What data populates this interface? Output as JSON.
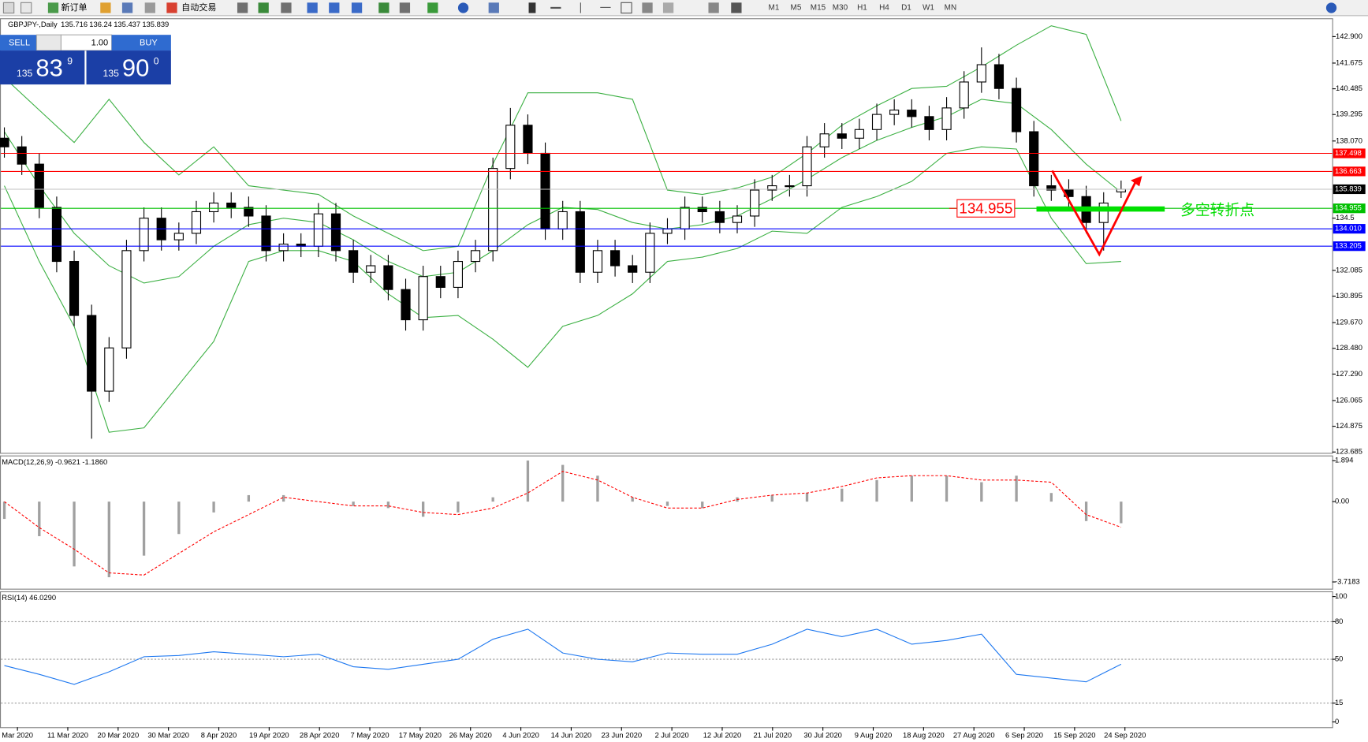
{
  "toolbar": {
    "new_order": "新订单",
    "auto_trading": "自动交易",
    "timeframes": [
      "M1",
      "M5",
      "M15",
      "M30",
      "H1",
      "H4",
      "D1",
      "W1",
      "MN"
    ]
  },
  "trade_panel": {
    "sell": "SELL",
    "buy": "BUY",
    "lots": "1.00",
    "bid": [
      "135",
      "83",
      "9"
    ],
    "ask": [
      "135",
      "90",
      "0"
    ]
  },
  "chart_data": {
    "type": "candlestick",
    "title": "GBPJPY-,Daily",
    "open": [
      138.2,
      137.8,
      137.0,
      135.0,
      132.5,
      130.0,
      126.5,
      128.5,
      133.0,
      134.5,
      133.5,
      133.8,
      134.8,
      135.2,
      135.0,
      134.6,
      133.0,
      133.3,
      133.2,
      134.7,
      133.0,
      132.0,
      132.3,
      131.2,
      129.8,
      131.8,
      131.3,
      132.5,
      133.0,
      136.8,
      138.8,
      137.5,
      134.0,
      134.8,
      132.0,
      133.0,
      132.3,
      132.0,
      133.8,
      134.0,
      135.0,
      134.8,
      134.3,
      134.6,
      135.8,
      136.0,
      136.0,
      137.8,
      138.4,
      138.2,
      138.6,
      139.3,
      139.5,
      139.2,
      138.6,
      139.6,
      140.8,
      141.6,
      140.5,
      138.5,
      136.0,
      135.8,
      135.5,
      134.3,
      135.716
    ],
    "high": [
      138.7,
      138.3,
      137.5,
      135.5,
      133.0,
      130.5,
      129.0,
      133.5,
      135.0,
      135.0,
      134.3,
      135.3,
      135.7,
      135.7,
      135.5,
      135.1,
      133.8,
      133.8,
      135.2,
      135.2,
      133.5,
      132.8,
      132.8,
      131.7,
      132.3,
      132.3,
      133.0,
      133.5,
      137.3,
      139.6,
      139.3,
      138.0,
      135.3,
      135.3,
      133.5,
      133.5,
      132.8,
      134.3,
      134.5,
      135.5,
      135.5,
      135.3,
      135.1,
      136.3,
      136.5,
      136.5,
      138.3,
      138.9,
      138.9,
      139.1,
      139.8,
      140.0,
      140.0,
      139.7,
      140.1,
      141.3,
      142.4,
      142.1,
      141.0,
      139.0,
      136.5,
      136.3,
      136.0,
      135.7,
      136.24
    ],
    "low": [
      137.3,
      136.5,
      134.5,
      132.0,
      129.5,
      124.3,
      126.0,
      128.0,
      132.5,
      133.0,
      133.0,
      133.3,
      134.3,
      134.5,
      134.1,
      132.5,
      132.5,
      132.7,
      132.7,
      132.5,
      131.5,
      131.5,
      130.7,
      129.3,
      129.3,
      130.8,
      130.8,
      132.0,
      132.5,
      136.3,
      137.0,
      133.5,
      133.5,
      131.5,
      131.5,
      131.8,
      131.5,
      131.5,
      133.3,
      133.5,
      134.3,
      133.8,
      133.8,
      134.1,
      135.3,
      135.5,
      135.5,
      137.3,
      137.7,
      137.7,
      138.1,
      138.8,
      138.7,
      138.1,
      138.1,
      139.1,
      140.3,
      140.0,
      138.0,
      135.5,
      135.3,
      135.0,
      133.8,
      133.0,
      135.437
    ],
    "close": [
      137.8,
      137.0,
      135.0,
      132.5,
      130.0,
      126.5,
      128.5,
      133.0,
      134.5,
      133.5,
      133.8,
      134.8,
      135.2,
      135.0,
      134.6,
      133.0,
      133.3,
      133.2,
      134.7,
      133.0,
      132.0,
      132.3,
      131.2,
      129.8,
      131.8,
      131.3,
      132.5,
      133.0,
      136.8,
      138.8,
      137.5,
      134.0,
      134.8,
      132.0,
      133.0,
      132.3,
      132.0,
      133.8,
      134.0,
      135.0,
      134.8,
      134.3,
      134.6,
      135.8,
      136.0,
      136.0,
      137.8,
      138.4,
      138.2,
      138.6,
      139.3,
      139.5,
      139.2,
      138.6,
      139.6,
      140.8,
      141.6,
      140.5,
      138.5,
      136.0,
      135.8,
      135.5,
      134.3,
      135.2,
      135.839
    ],
    "up_color": "#ffffff",
    "down_color": "#000000",
    "ylim": [
      123.645,
      143.706
    ],
    "yticks": [
      {
        "value": 142.9,
        "label": "142.900"
      },
      141.675,
      140.485,
      139.295,
      {
        "value": 138.07,
        "label": "138.070"
      },
      134.5,
      132.085,
      130.895,
      {
        "value": 129.67,
        "label": "129.670"
      },
      {
        "value": 128.48,
        "label": "128.480"
      },
      {
        "value": 127.29,
        "label": "127.290"
      },
      126.065,
      124.875,
      123.685
    ],
    "bollinger": {
      "color": "#3cb043",
      "upper": [
        141.0,
        139.5,
        138.0,
        140.0,
        138.0,
        136.5,
        137.8,
        136.0,
        135.8,
        135.6,
        134.6,
        133.8,
        133.0,
        133.2,
        137.0,
        140.3,
        140.3,
        140.3,
        140.0,
        135.8,
        135.6,
        135.9,
        136.4,
        137.5,
        138.8,
        139.7,
        140.5,
        140.6,
        141.5,
        142.5,
        143.4,
        143.0,
        139.0
      ],
      "middle": [
        138.5,
        136.0,
        133.8,
        132.3,
        131.5,
        131.8,
        133.2,
        134.2,
        134.5,
        134.3,
        133.5,
        132.5,
        131.8,
        132.0,
        133.0,
        134.2,
        135.0,
        134.9,
        134.3,
        134.0,
        134.2,
        134.6,
        135.4,
        136.3,
        137.3,
        138.1,
        138.7,
        139.2,
        140.0,
        139.8,
        138.6,
        137.0,
        135.7
      ],
      "lower": [
        136.0,
        132.5,
        129.5,
        124.6,
        124.8,
        126.8,
        128.8,
        132.5,
        133.0,
        133.0,
        132.5,
        131.0,
        129.9,
        130.0,
        128.9,
        127.6,
        129.5,
        130.0,
        131.0,
        132.5,
        132.7,
        133.1,
        133.9,
        133.8,
        135.0,
        135.5,
        136.2,
        137.5,
        137.8,
        137.7,
        134.5,
        132.4,
        132.5
      ]
    },
    "levels": [
      {
        "value": 137.498,
        "color": "#ff0000"
      },
      {
        "value": 136.663,
        "color": "#ff0000"
      },
      {
        "value": 135.839,
        "color": "#000000",
        "line_color": "#c0c0c0"
      },
      {
        "value": 134.955,
        "color": "#00c000"
      },
      {
        "value": 134.01,
        "label": "134.010",
        "color": "#0000ff"
      },
      {
        "value": 133.205,
        "color": "#0000ff"
      }
    ],
    "annotation": "多空转折点",
    "date_labels": [
      "Mar 2020",
      "11 Mar 2020",
      "20 Mar 2020",
      "30 Mar 2020",
      "8 Apr 2020",
      "19 Apr 2020",
      "28 Apr 2020",
      "7 May 2020",
      "17 May 2020",
      "26 May 2020",
      "4 Jun 2020",
      "14 Jun 2020",
      "23 Jun 2020",
      "2 Jul 2020",
      "12 Jul 2020",
      "21 Jul 2020",
      "30 Jul 2020",
      "9 Aug 2020",
      "18 Aug 2020",
      "27 Aug 2020",
      "6 Sep 2020",
      "15 Sep 2020",
      "24 Sep 2020"
    ],
    "macd": {
      "title": "MACD(12,26,9) -0.9621 -1.1860",
      "histogram_color": "#a0a0a0",
      "signal_color": "#ff0000",
      "histogram": [
        -0.8,
        -1.6,
        -3.0,
        -3.5,
        -2.5,
        -1.5,
        -0.5,
        0.3,
        0.3,
        0.0,
        -0.2,
        -0.3,
        -0.7,
        -0.5,
        0.2,
        1.9,
        1.7,
        1.2,
        0.2,
        -0.2,
        -0.3,
        0.2,
        0.3,
        0.4,
        0.6,
        1.0,
        1.2,
        1.2,
        0.9,
        1.2,
        0.4,
        -0.9,
        -1.0
      ],
      "signal": [
        0.0,
        -1.2,
        -2.2,
        -3.3,
        -3.4,
        -2.4,
        -1.4,
        -0.6,
        0.2,
        0.0,
        -0.2,
        -0.2,
        -0.5,
        -0.6,
        -0.3,
        0.4,
        1.4,
        1.0,
        0.2,
        -0.3,
        -0.3,
        0.1,
        0.3,
        0.4,
        0.7,
        1.1,
        1.2,
        1.2,
        1.0,
        1.0,
        0.9,
        -0.6,
        -1.186
      ],
      "ylim": [
        -4.032,
        2.136
      ],
      "yticks": [
        1.894,
        {
          "value": 0,
          "label": "0.00"
        },
        -3.7183
      ]
    },
    "rsi": {
      "title": "RSI(14) 46.0290",
      "color": "#1e78f0",
      "values": [
        45,
        38,
        30,
        40,
        52,
        53,
        56,
        54,
        52,
        54,
        44,
        42,
        46,
        50,
        66,
        74,
        55,
        50,
        48,
        55,
        54,
        54,
        62,
        74,
        68,
        74,
        62,
        65,
        70,
        38,
        35,
        32,
        46.029
      ],
      "ylim": [
        -4.2,
        104.2
      ],
      "yticks": [
        100,
        80,
        50,
        15,
        0
      ]
    }
  }
}
